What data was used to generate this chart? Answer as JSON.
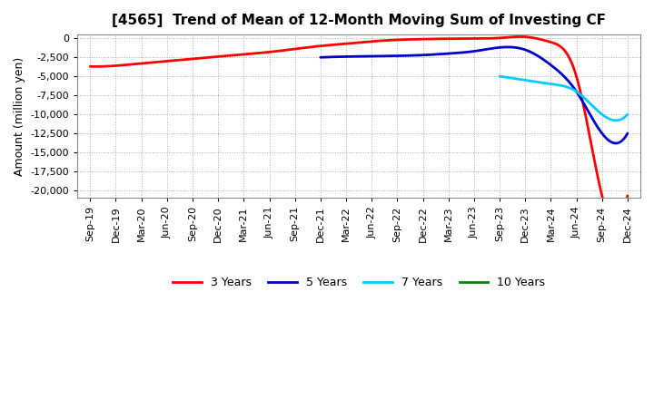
{
  "title": "[4565]  Trend of Mean of 12-Month Moving Sum of Investing CF",
  "ylabel": "Amount (million yen)",
  "ylim": [
    -21000,
    500
  ],
  "yticks": [
    0,
    -2500,
    -5000,
    -7500,
    -10000,
    -12500,
    -15000,
    -17500,
    -20000
  ],
  "background_color": "#ffffff",
  "x_labels": [
    "Sep-19",
    "Dec-19",
    "Mar-20",
    "Jun-20",
    "Sep-20",
    "Dec-20",
    "Mar-21",
    "Jun-21",
    "Sep-21",
    "Dec-21",
    "Mar-22",
    "Jun-22",
    "Sep-22",
    "Dec-22",
    "Mar-23",
    "Jun-23",
    "Sep-23",
    "Dec-23",
    "Mar-24",
    "Jun-24",
    "Sep-24",
    "Dec-24"
  ],
  "series_3y": {
    "color": "#ff0000",
    "linewidth": 2.0,
    "data_x": [
      0,
      1,
      2,
      3,
      4,
      5,
      6,
      7,
      8,
      9,
      10,
      11,
      12,
      13,
      14,
      15,
      16,
      17,
      18,
      19,
      20,
      21
    ],
    "data_y": [
      -3700,
      -3600,
      -3300,
      -3000,
      -2700,
      -2400,
      -2100,
      -1800,
      -1400,
      -1000,
      -700,
      -400,
      -200,
      -100,
      -50,
      -20,
      50,
      200,
      -500,
      -5000,
      -20700,
      -20700
    ]
  },
  "series_5y": {
    "color": "#0000cc",
    "linewidth": 2.0,
    "data_x": [
      9,
      10,
      11,
      12,
      13,
      14,
      15,
      16,
      17,
      18,
      19,
      20,
      21
    ],
    "data_y": [
      -2500,
      -2400,
      -2350,
      -2300,
      -2200,
      -2000,
      -1700,
      -1200,
      -1500,
      -3500,
      -7000,
      -12500,
      -12500
    ]
  },
  "series_7y": {
    "color": "#00ccff",
    "linewidth": 2.0,
    "data_x": [
      16,
      17,
      18,
      19,
      20,
      21
    ],
    "data_y": [
      -5000,
      -5500,
      -6000,
      -7000,
      -10000,
      -10000
    ]
  },
  "series_10y": {
    "color": "#008800",
    "linewidth": 2.0,
    "data_x": [],
    "data_y": []
  },
  "legend": {
    "3 Years": "#ff0000",
    "5 Years": "#0000cc",
    "7 Years": "#00ccff",
    "10 Years": "#008800"
  }
}
